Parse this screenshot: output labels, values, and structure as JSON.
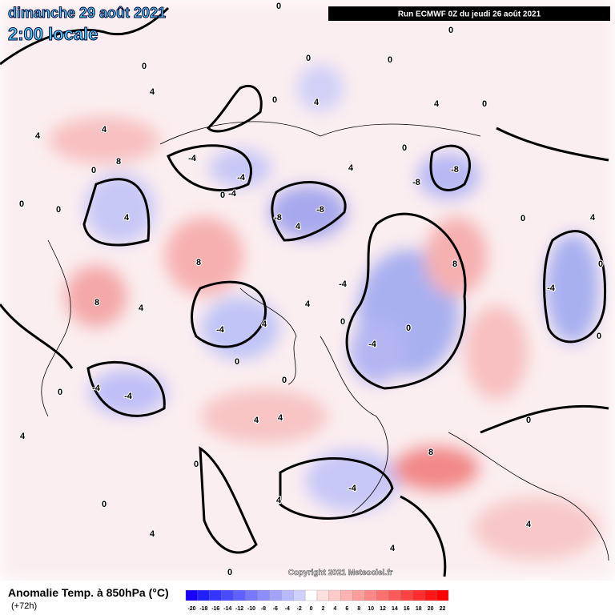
{
  "header": {
    "date": "dimanche 29 août 2021",
    "time": "2:00 locale",
    "run": "Run ECMWF 0Z du jeudi 26 août 2021"
  },
  "map": {
    "copyright": "Copyright 2021 Meteociel.fr",
    "contour_labels": [
      0,
      4,
      4,
      4,
      8,
      0,
      0,
      0,
      4,
      -4,
      -4,
      -4,
      0,
      8,
      8,
      4,
      -8,
      -8,
      4,
      8,
      -8,
      -8,
      -4,
      0,
      0,
      0,
      8,
      4,
      4,
      4,
      0,
      0,
      4,
      4,
      4,
      -4,
      0,
      0,
      -4,
      0,
      0,
      -4,
      4,
      4,
      0,
      -4,
      -4,
      -4,
      4,
      0,
      0,
      4,
      0,
      4,
      4,
      0,
      0,
      0,
      0,
      0,
      0,
      4
    ]
  },
  "legend": {
    "title": "Anomalie Temp. à 850hPa (°C)",
    "step": "(+72h)",
    "ticks": [
      -20,
      -18,
      -16,
      -14,
      -12,
      -10,
      -8,
      -6,
      -4,
      -2,
      0,
      2,
      4,
      6,
      8,
      10,
      12,
      14,
      16,
      18,
      20,
      22
    ],
    "colors": [
      "#1a00ff",
      "#2020ff",
      "#3535ff",
      "#4a4aff",
      "#6060ff",
      "#7777ff",
      "#8d8dff",
      "#a3a3ff",
      "#b9b9ff",
      "#d0d0ff",
      "#ffffff",
      "#ffe0e0",
      "#ffcaca",
      "#ffb3b3",
      "#ff9d9d",
      "#ff8787",
      "#ff7070",
      "#ff5a5a",
      "#ff4343",
      "#ff2d2d",
      "#ff1616",
      "#ff0000"
    ]
  }
}
